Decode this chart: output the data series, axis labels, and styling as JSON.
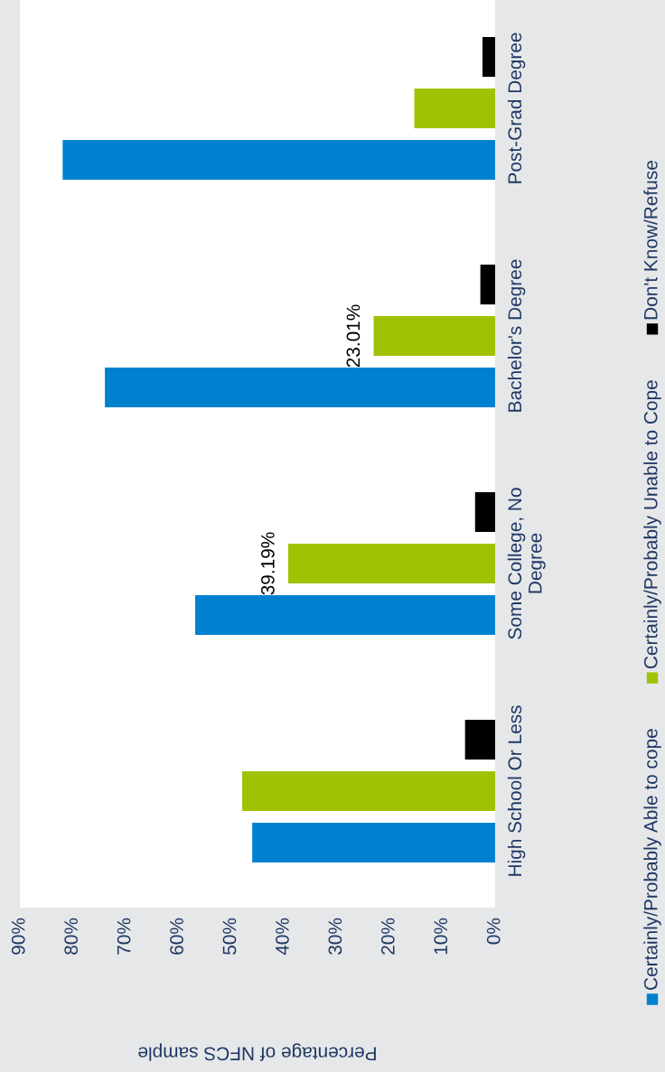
{
  "chart_data": {
    "type": "bar",
    "orientation": "horizontal",
    "categories": [
      "Post-Grad Degree",
      "Bachelor's Degree",
      "Some College, No\nDegree",
      "High School Or Less"
    ],
    "series": [
      {
        "name": "Certainly/Probably Able to cope",
        "color": "#0081d0",
        "values": [
          81.9,
          73.9,
          56.8,
          46.0
        ]
      },
      {
        "name": "Certainly/Probably Unable to Cope",
        "color": "#9fc304",
        "values": [
          15.3,
          23.01,
          39.19,
          47.9
        ],
        "value_labels": [
          null,
          "23.01%",
          "39.19%",
          null
        ]
      },
      {
        "name": "Don't Know/Refuse",
        "color": "#000000",
        "values": [
          2.4,
          2.8,
          3.8,
          5.7
        ]
      }
    ],
    "xlabel": "Percentage of NFCS sample",
    "xlim": [
      90,
      0
    ],
    "xticks": [
      {
        "value": 90,
        "label": "90%"
      },
      {
        "value": 80,
        "label": "80%"
      },
      {
        "value": 70,
        "label": "70%"
      },
      {
        "value": 60,
        "label": "60%"
      },
      {
        "value": 50,
        "label": "50%"
      },
      {
        "value": 40,
        "label": "40%"
      },
      {
        "value": 30,
        "label": "30%"
      },
      {
        "value": 20,
        "label": "20%"
      },
      {
        "value": 10,
        "label": "10%"
      },
      {
        "value": 0,
        "label": "0%"
      }
    ],
    "grid": false,
    "legend": "right"
  }
}
